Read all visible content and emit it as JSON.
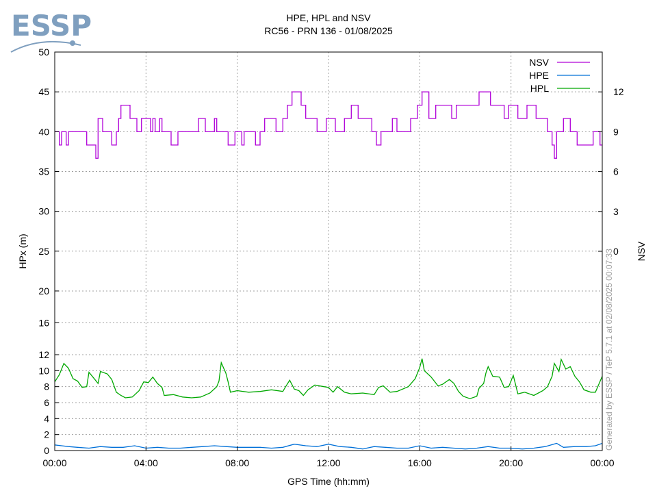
{
  "logo": {
    "text": "ESSP"
  },
  "title": {
    "line1": "HPE, HPL and NSV",
    "line2": "RC56 - PRN 136 - 01/08/2025"
  },
  "credit": "Generated by ESSP / TeP 5.7.1 at 02/08/2025 00:07:33",
  "colors": {
    "nsv": "#b000d8",
    "hpe": "#0070d8",
    "hpl": "#00a800",
    "grid": "#a0a0a0",
    "logo": "#7f9fbf"
  },
  "chart_data": {
    "type": "line",
    "title": "HPE, HPL and NSV",
    "subtitle": "RC56 - PRN 136 - 01/08/2025",
    "xlabel": "GPS Time (hh:mm)",
    "ylabel": "HPx (m)",
    "y2label": "NSV",
    "grid": true,
    "legend_position": "top-right",
    "xlim": [
      0,
      24
    ],
    "x_ticks": [
      "00:00",
      "04:00",
      "08:00",
      "12:00",
      "16:00",
      "20:00",
      "00:00"
    ],
    "y_ticks": [
      "0",
      "2",
      "4",
      "6",
      "8",
      "10",
      "12",
      "16",
      "20",
      "25",
      "30",
      "35",
      "40",
      "45",
      "50"
    ],
    "y2_ticks": [
      "0",
      "3",
      "6",
      "9",
      "12"
    ],
    "x_unit": "hours",
    "series": [
      {
        "name": "NSV",
        "axis": "right",
        "color": "#b000d8",
        "points": [
          [
            0.0,
            9
          ],
          [
            0.2,
            8
          ],
          [
            0.3,
            9
          ],
          [
            0.5,
            8
          ],
          [
            0.6,
            9
          ],
          [
            1.4,
            8
          ],
          [
            1.8,
            7
          ],
          [
            1.9,
            10
          ],
          [
            2.1,
            9
          ],
          [
            2.5,
            8
          ],
          [
            2.7,
            9
          ],
          [
            2.8,
            10
          ],
          [
            2.9,
            11
          ],
          [
            3.3,
            10
          ],
          [
            3.6,
            9
          ],
          [
            3.8,
            10
          ],
          [
            4.2,
            9
          ],
          [
            4.3,
            10
          ],
          [
            4.4,
            9
          ],
          [
            4.6,
            10
          ],
          [
            4.7,
            9
          ],
          [
            5.1,
            8
          ],
          [
            5.4,
            9
          ],
          [
            6.1,
            9
          ],
          [
            6.3,
            10
          ],
          [
            6.6,
            9
          ],
          [
            7.0,
            10
          ],
          [
            7.1,
            9
          ],
          [
            7.6,
            8
          ],
          [
            7.9,
            9
          ],
          [
            8.2,
            8
          ],
          [
            8.3,
            9
          ],
          [
            8.8,
            8
          ],
          [
            9.0,
            9
          ],
          [
            9.2,
            10
          ],
          [
            9.7,
            9
          ],
          [
            10.0,
            10
          ],
          [
            10.2,
            11
          ],
          [
            10.4,
            12
          ],
          [
            10.8,
            11
          ],
          [
            11.0,
            10
          ],
          [
            11.5,
            9
          ],
          [
            11.9,
            10
          ],
          [
            12.3,
            9
          ],
          [
            12.7,
            10
          ],
          [
            13.0,
            11
          ],
          [
            13.3,
            10
          ],
          [
            13.9,
            9
          ],
          [
            14.1,
            8
          ],
          [
            14.3,
            9
          ],
          [
            14.8,
            10
          ],
          [
            15.0,
            9
          ],
          [
            15.6,
            10
          ],
          [
            15.9,
            11
          ],
          [
            16.1,
            12
          ],
          [
            16.4,
            10
          ],
          [
            16.7,
            11
          ],
          [
            17.4,
            10
          ],
          [
            17.6,
            11
          ],
          [
            18.1,
            11
          ],
          [
            18.6,
            12
          ],
          [
            19.1,
            11
          ],
          [
            19.7,
            10
          ],
          [
            19.9,
            11
          ],
          [
            20.3,
            10
          ],
          [
            20.7,
            11
          ],
          [
            21.1,
            10
          ],
          [
            21.6,
            9
          ],
          [
            21.8,
            8
          ],
          [
            21.9,
            7
          ],
          [
            22.0,
            9
          ],
          [
            22.3,
            10
          ],
          [
            22.6,
            9
          ],
          [
            22.9,
            8
          ],
          [
            23.6,
            9
          ],
          [
            23.9,
            8
          ],
          [
            24.0,
            8
          ]
        ]
      },
      {
        "name": "HPE",
        "axis": "left",
        "color": "#0070d8",
        "points": [
          [
            0.0,
            0.7
          ],
          [
            0.3,
            0.6
          ],
          [
            0.6,
            0.5
          ],
          [
            1.0,
            0.4
          ],
          [
            1.5,
            0.3
          ],
          [
            2.0,
            0.5
          ],
          [
            2.5,
            0.4
          ],
          [
            3.0,
            0.4
          ],
          [
            3.5,
            0.6
          ],
          [
            4.0,
            0.3
          ],
          [
            4.5,
            0.4
          ],
          [
            5.0,
            0.3
          ],
          [
            5.5,
            0.3
          ],
          [
            6.0,
            0.4
          ],
          [
            6.5,
            0.5
          ],
          [
            7.0,
            0.6
          ],
          [
            7.5,
            0.5
          ],
          [
            8.0,
            0.4
          ],
          [
            8.5,
            0.4
          ],
          [
            9.0,
            0.4
          ],
          [
            9.5,
            0.3
          ],
          [
            10.0,
            0.4
          ],
          [
            10.5,
            0.8
          ],
          [
            11.0,
            0.6
          ],
          [
            11.5,
            0.5
          ],
          [
            12.0,
            0.8
          ],
          [
            12.5,
            0.5
          ],
          [
            13.0,
            0.4
          ],
          [
            13.5,
            0.2
          ],
          [
            14.0,
            0.5
          ],
          [
            14.5,
            0.4
          ],
          [
            15.0,
            0.3
          ],
          [
            15.5,
            0.3
          ],
          [
            16.0,
            0.6
          ],
          [
            16.5,
            0.3
          ],
          [
            17.0,
            0.4
          ],
          [
            17.5,
            0.3
          ],
          [
            18.0,
            0.2
          ],
          [
            18.5,
            0.3
          ],
          [
            19.0,
            0.5
          ],
          [
            19.5,
            0.3
          ],
          [
            20.0,
            0.3
          ],
          [
            20.5,
            0.2
          ],
          [
            21.0,
            0.3
          ],
          [
            21.5,
            0.5
          ],
          [
            22.0,
            0.9
          ],
          [
            22.3,
            0.4
          ],
          [
            22.8,
            0.5
          ],
          [
            23.3,
            0.5
          ],
          [
            23.7,
            0.6
          ],
          [
            24.0,
            0.9
          ]
        ]
      },
      {
        "name": "HPL",
        "axis": "left",
        "color": "#00a800",
        "points": [
          [
            0.0,
            8.6
          ],
          [
            0.2,
            9.5
          ],
          [
            0.4,
            10.9
          ],
          [
            0.6,
            10.3
          ],
          [
            0.8,
            9.0
          ],
          [
            1.0,
            8.7
          ],
          [
            1.2,
            7.9
          ],
          [
            1.4,
            8.0
          ],
          [
            1.5,
            9.8
          ],
          [
            1.7,
            9.1
          ],
          [
            1.9,
            8.4
          ],
          [
            2.0,
            9.9
          ],
          [
            2.3,
            9.6
          ],
          [
            2.5,
            8.9
          ],
          [
            2.7,
            7.3
          ],
          [
            2.9,
            6.9
          ],
          [
            3.1,
            6.6
          ],
          [
            3.4,
            6.7
          ],
          [
            3.7,
            7.5
          ],
          [
            3.9,
            8.6
          ],
          [
            4.1,
            8.5
          ],
          [
            4.3,
            9.2
          ],
          [
            4.5,
            8.4
          ],
          [
            4.7,
            7.9
          ],
          [
            4.8,
            6.9
          ],
          [
            5.2,
            7.0
          ],
          [
            5.6,
            6.7
          ],
          [
            6.0,
            6.6
          ],
          [
            6.4,
            6.7
          ],
          [
            6.8,
            7.2
          ],
          [
            7.1,
            8.0
          ],
          [
            7.2,
            8.7
          ],
          [
            7.3,
            11.0
          ],
          [
            7.5,
            9.7
          ],
          [
            7.6,
            8.6
          ],
          [
            7.7,
            7.3
          ],
          [
            8.0,
            7.5
          ],
          [
            8.5,
            7.3
          ],
          [
            9.0,
            7.4
          ],
          [
            9.5,
            7.6
          ],
          [
            10.0,
            7.4
          ],
          [
            10.1,
            7.9
          ],
          [
            10.3,
            8.8
          ],
          [
            10.5,
            7.7
          ],
          [
            10.7,
            7.5
          ],
          [
            10.9,
            6.9
          ],
          [
            11.1,
            7.6
          ],
          [
            11.4,
            8.2
          ],
          [
            11.8,
            8.0
          ],
          [
            12.0,
            7.9
          ],
          [
            12.2,
            7.3
          ],
          [
            12.4,
            8.0
          ],
          [
            12.7,
            7.3
          ],
          [
            13.0,
            7.1
          ],
          [
            13.5,
            7.2
          ],
          [
            14.0,
            7.0
          ],
          [
            14.2,
            7.9
          ],
          [
            14.4,
            8.1
          ],
          [
            14.7,
            7.3
          ],
          [
            15.0,
            7.4
          ],
          [
            15.5,
            8.0
          ],
          [
            15.8,
            9.0
          ],
          [
            16.0,
            10.4
          ],
          [
            16.1,
            11.5
          ],
          [
            16.2,
            10.0
          ],
          [
            16.5,
            9.2
          ],
          [
            16.8,
            8.1
          ],
          [
            17.0,
            8.3
          ],
          [
            17.3,
            8.9
          ],
          [
            17.5,
            8.4
          ],
          [
            17.7,
            7.4
          ],
          [
            17.9,
            6.8
          ],
          [
            18.2,
            6.5
          ],
          [
            18.5,
            6.8
          ],
          [
            18.6,
            7.8
          ],
          [
            18.8,
            8.4
          ],
          [
            18.9,
            9.7
          ],
          [
            19.0,
            10.5
          ],
          [
            19.2,
            9.3
          ],
          [
            19.5,
            9.2
          ],
          [
            19.7,
            7.9
          ],
          [
            19.9,
            8.0
          ],
          [
            20.1,
            9.4
          ],
          [
            20.3,
            7.1
          ],
          [
            20.6,
            7.3
          ],
          [
            21.0,
            6.9
          ],
          [
            21.4,
            7.5
          ],
          [
            21.6,
            8.0
          ],
          [
            21.8,
            9.3
          ],
          [
            21.9,
            10.9
          ],
          [
            22.1,
            9.9
          ],
          [
            22.2,
            11.4
          ],
          [
            22.4,
            10.2
          ],
          [
            22.6,
            10.5
          ],
          [
            22.8,
            9.3
          ],
          [
            23.0,
            8.6
          ],
          [
            23.2,
            7.6
          ],
          [
            23.5,
            7.3
          ],
          [
            23.7,
            7.3
          ],
          [
            24.0,
            9.3
          ]
        ]
      }
    ]
  }
}
